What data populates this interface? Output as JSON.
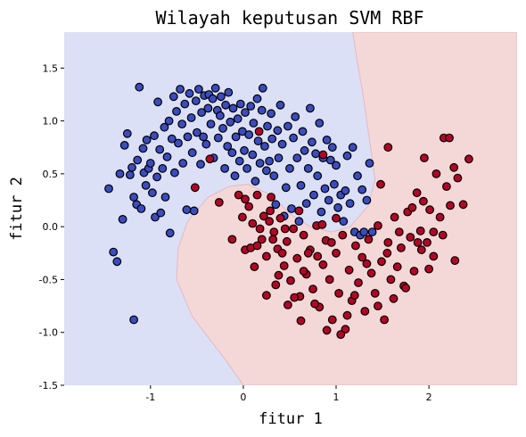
{
  "chart_data": {
    "type": "scatter",
    "title": "Wilayah keputusan SVM RBF",
    "xlabel": "fitur 1",
    "ylabel": "fitur 2",
    "xlim": [
      -1.93,
      2.95
    ],
    "ylim": [
      -1.5,
      1.84
    ],
    "xticks": [
      {
        "v": -1,
        "label": "-1"
      },
      {
        "v": 0,
        "label": "0"
      },
      {
        "v": 1,
        "label": "1"
      },
      {
        "v": 2,
        "label": "2"
      }
    ],
    "yticks": [
      {
        "v": -1.5,
        "label": "-1.5"
      },
      {
        "v": -1.0,
        "label": "-1.0"
      },
      {
        "v": -0.5,
        "label": "-0.5"
      },
      {
        "v": 0.0,
        "label": "0.0"
      },
      {
        "v": 0.5,
        "label": "0.5"
      },
      {
        "v": 1.0,
        "label": "1.0"
      },
      {
        "v": 1.5,
        "label": "1.5"
      }
    ],
    "grid": false,
    "regions": {
      "class0_color": "#dbe0f6",
      "class1_color": "#f4d8d7",
      "class1_boundary": [
        [
          0.0,
          -1.5
        ],
        [
          -0.2,
          -1.25
        ],
        [
          -0.55,
          -0.85
        ],
        [
          -0.72,
          -0.5
        ],
        [
          -0.7,
          -0.2
        ],
        [
          -0.6,
          0.05
        ],
        [
          -0.38,
          0.28
        ],
        [
          -0.15,
          0.38
        ],
        [
          0.05,
          0.4
        ],
        [
          0.3,
          0.3
        ],
        [
          0.5,
          0.12
        ],
        [
          0.72,
          0.0
        ],
        [
          0.95,
          -0.05
        ],
        [
          1.15,
          0.0
        ],
        [
          1.35,
          0.2
        ],
        [
          1.42,
          0.45
        ],
        [
          1.38,
          0.7
        ],
        [
          1.33,
          1.0
        ],
        [
          1.28,
          1.3
        ],
        [
          1.22,
          1.6
        ],
        [
          1.18,
          1.84
        ],
        [
          2.95,
          1.84
        ],
        [
          2.95,
          -1.5
        ]
      ]
    },
    "series": [
      {
        "color": "#3b4cc0",
        "points": [
          [
            -1.45,
            0.36
          ],
          [
            -1.36,
            -0.33
          ],
          [
            -1.4,
            -0.24
          ],
          [
            -1.33,
            0.5
          ],
          [
            -1.3,
            0.07
          ],
          [
            -1.28,
            0.77
          ],
          [
            -1.25,
            0.88
          ],
          [
            -1.22,
            0.49
          ],
          [
            -1.2,
            0.56
          ],
          [
            -1.18,
            0.28
          ],
          [
            -1.18,
            -0.88
          ],
          [
            -1.15,
            0.21
          ],
          [
            -1.14,
            0.63
          ],
          [
            -1.12,
            1.32
          ],
          [
            -1.1,
            0.17
          ],
          [
            -1.08,
            0.74
          ],
          [
            -1.07,
            0.51
          ],
          [
            -1.05,
            0.39
          ],
          [
            -1.04,
            0.82
          ],
          [
            -1.02,
            0.55
          ],
          [
            -1.0,
            0.6
          ],
          [
            -0.98,
            0.32
          ],
          [
            -0.96,
            0.86
          ],
          [
            -0.95,
            0.09
          ],
          [
            -0.93,
            0.47
          ],
          [
            -0.92,
            1.18
          ],
          [
            -0.9,
            0.73
          ],
          [
            -0.89,
            0.13
          ],
          [
            -0.87,
            0.55
          ],
          [
            -0.85,
            0.94
          ],
          [
            -0.84,
            0.28
          ],
          [
            -0.82,
            0.66
          ],
          [
            -0.8,
            1.0
          ],
          [
            -0.79,
            -0.06
          ],
          [
            -0.77,
            0.83
          ],
          [
            -0.75,
            1.23
          ],
          [
            -0.74,
            0.51
          ],
          [
            -0.72,
            1.09
          ],
          [
            -0.7,
            0.79
          ],
          [
            -0.68,
            1.3
          ],
          [
            -0.66,
            0.97
          ],
          [
            -0.65,
            0.6
          ],
          [
            -0.63,
            1.16
          ],
          [
            -0.61,
            0.16
          ],
          [
            -0.6,
            0.85
          ],
          [
            -0.58,
            1.26
          ],
          [
            -0.56,
            1.03
          ],
          [
            -0.55,
            0.7
          ],
          [
            -0.53,
            0.15
          ],
          [
            -0.51,
            1.19
          ],
          [
            -0.5,
            0.89
          ],
          [
            -0.48,
            1.3
          ],
          [
            -0.46,
            0.59
          ],
          [
            -0.45,
            1.08
          ],
          [
            -0.43,
            0.85
          ],
          [
            -0.42,
            1.24
          ],
          [
            -0.4,
            0.78
          ],
          [
            -0.38,
            1.12
          ],
          [
            -0.37,
            1.25
          ],
          [
            -0.35,
            0.97
          ],
          [
            -0.33,
            1.21
          ],
          [
            -0.32,
            0.65
          ],
          [
            -0.3,
            1.31
          ],
          [
            -0.28,
            1.1
          ],
          [
            -0.27,
            0.84
          ],
          [
            -0.25,
            1.05
          ],
          [
            -0.24,
            1.23
          ],
          [
            -0.22,
            0.93
          ],
          [
            -0.2,
            0.55
          ],
          [
            -0.19,
            1.15
          ],
          [
            -0.17,
            0.76
          ],
          [
            -0.16,
            1.27
          ],
          [
            -0.14,
            0.99
          ],
          [
            -0.12,
            0.7
          ],
          [
            -0.11,
            1.12
          ],
          [
            -0.09,
            0.48
          ],
          [
            -0.08,
            0.85
          ],
          [
            -0.06,
            1.02
          ],
          [
            -0.04,
            0.62
          ],
          [
            -0.03,
            1.16
          ],
          [
            -0.01,
            0.9
          ],
          [
            0.01,
            0.72
          ],
          [
            0.02,
            1.08
          ],
          [
            0.04,
            0.55
          ],
          [
            0.06,
            0.87
          ],
          [
            0.08,
            1.14
          ],
          [
            0.1,
            0.68
          ],
          [
            0.11,
            0.98
          ],
          [
            0.13,
            0.43
          ],
          [
            0.15,
            1.21
          ],
          [
            0.16,
            0.81
          ],
          [
            0.18,
            0.6
          ],
          [
            0.2,
            1.1
          ],
          [
            0.21,
            1.31
          ],
          [
            0.23,
            0.76
          ],
          [
            0.25,
            0.53
          ],
          [
            0.26,
            0.95
          ],
          [
            0.28,
            0.62
          ],
          [
            0.3,
            1.07
          ],
          [
            0.31,
            0.83
          ],
          [
            0.33,
            0.48
          ],
          [
            0.35,
            0.21
          ],
          [
            0.37,
            0.91
          ],
          [
            0.38,
            0.65
          ],
          [
            0.4,
            1.15
          ],
          [
            0.42,
            0.78
          ],
          [
            0.44,
            0.1
          ],
          [
            0.46,
            0.37
          ],
          [
            0.48,
            0.95
          ],
          [
            0.5,
            0.55
          ],
          [
            0.52,
            0.17
          ],
          [
            0.54,
            0.84
          ],
          [
            0.56,
            1.04
          ],
          [
            0.58,
            0.65
          ],
          [
            0.6,
            0.05
          ],
          [
            0.62,
            0.39
          ],
          [
            0.64,
            0.9
          ],
          [
            0.66,
            0.72
          ],
          [
            0.68,
            0.22
          ],
          [
            0.7,
            0.55
          ],
          [
            0.72,
            1.12
          ],
          [
            0.74,
            0.8
          ],
          [
            0.76,
            0.3
          ],
          [
            0.78,
            0.69
          ],
          [
            0.8,
            0.48
          ],
          [
            0.82,
            0.98
          ],
          [
            0.84,
            0.14
          ],
          [
            0.86,
            0.65
          ],
          [
            0.88,
            0.36
          ],
          [
            0.9,
            0.82
          ],
          [
            0.92,
            0.25
          ],
          [
            0.94,
            0.63
          ],
          [
            0.96,
            0.75
          ],
          [
            0.98,
            0.4
          ],
          [
            1.0,
            0.58
          ],
          [
            1.02,
            0.18
          ],
          [
            1.05,
            0.3
          ],
          [
            1.08,
            0.05
          ],
          [
            1.1,
            0.34
          ],
          [
            1.12,
            0.67
          ],
          [
            1.15,
            0.22
          ],
          [
            1.18,
            0.75
          ],
          [
            1.2,
            -0.05
          ],
          [
            1.23,
            0.48
          ],
          [
            1.26,
            -0.08
          ],
          [
            1.28,
            0.35
          ],
          [
            1.3,
            -0.05
          ],
          [
            1.33,
            0.25
          ],
          [
            1.36,
            0.6
          ],
          [
            1.39,
            -0.05
          ]
        ]
      },
      {
        "color": "#b40426",
        "points": [
          [
            0.17,
            0.9
          ],
          [
            -0.36,
            0.64
          ],
          [
            -0.52,
            0.37
          ],
          [
            0.86,
            0.68
          ],
          [
            -0.26,
            0.23
          ],
          [
            0.3,
            0.28
          ],
          [
            -0.05,
            0.3
          ],
          [
            0.18,
            -0.02
          ],
          [
            0.22,
            0.1
          ],
          [
            -0.01,
            0.09
          ],
          [
            0.02,
            0.26
          ],
          [
            0.06,
            0.19
          ],
          [
            0.1,
            0.03
          ],
          [
            0.15,
            0.3
          ],
          [
            0.2,
            -0.12
          ],
          [
            0.25,
            -0.28
          ],
          [
            0.29,
            0.15
          ],
          [
            0.33,
            -0.05
          ],
          [
            0.37,
            -0.21
          ],
          [
            0.4,
            0.08
          ],
          [
            0.44,
            -0.37
          ],
          [
            0.47,
            -0.14
          ],
          [
            0.51,
            -0.51
          ],
          [
            0.54,
            -0.02
          ],
          [
            0.58,
            -0.3
          ],
          [
            0.61,
            -0.66
          ],
          [
            0.65,
            -0.08
          ],
          [
            0.68,
            -0.45
          ],
          [
            0.72,
            -0.22
          ],
          [
            0.75,
            -0.59
          ],
          [
            0.79,
            0.01
          ],
          [
            0.82,
            -0.76
          ],
          [
            0.86,
            -0.36
          ],
          [
            0.89,
            -0.13
          ],
          [
            0.93,
            -0.5
          ],
          [
            0.96,
            -0.88
          ],
          [
            1.0,
            -0.25
          ],
          [
            1.03,
            -0.63
          ],
          [
            1.07,
            -0.08
          ],
          [
            1.1,
            -0.97
          ],
          [
            1.14,
            -0.41
          ],
          [
            1.17,
            -0.7
          ],
          [
            1.21,
            -0.18
          ],
          [
            1.24,
            -0.53
          ],
          [
            1.28,
            -0.29
          ],
          [
            1.31,
            -0.8
          ],
          [
            1.35,
            -0.12
          ],
          [
            1.38,
            -0.44
          ],
          [
            1.42,
            -0.63
          ],
          [
            1.45,
            0.01
          ],
          [
            1.49,
            -0.33
          ],
          [
            1.52,
            -0.88
          ],
          [
            1.56,
            -0.15
          ],
          [
            1.59,
            -0.5
          ],
          [
            1.63,
            0.09
          ],
          [
            1.66,
            -0.38
          ],
          [
            1.7,
            -0.2
          ],
          [
            1.73,
            -0.56
          ],
          [
            1.77,
            0.14
          ],
          [
            1.8,
            -0.1
          ],
          [
            1.84,
            -0.42
          ],
          [
            1.87,
            0.32
          ],
          [
            1.91,
            -0.04
          ],
          [
            1.94,
            0.24
          ],
          [
            1.98,
            -0.15
          ],
          [
            2.01,
            0.16
          ],
          [
            2.05,
            -0.05
          ],
          [
            2.08,
            0.5
          ],
          [
            2.12,
            0.09
          ],
          [
            2.16,
            0.84
          ],
          [
            2.19,
            0.38
          ],
          [
            2.23,
            0.2
          ],
          [
            2.27,
            0.56
          ],
          [
            2.31,
            0.46
          ],
          [
            2.37,
            0.21
          ],
          [
            2.43,
            0.64
          ],
          [
            1.56,
            0.75
          ],
          [
            2.22,
            0.84
          ],
          [
            1.95,
            0.65
          ],
          [
            0.35,
            -0.55
          ],
          [
            0.48,
            -0.74
          ],
          [
            0.62,
            -0.89
          ],
          [
            0.77,
            -0.73
          ],
          [
            0.9,
            -0.98
          ],
          [
            1.05,
            -1.02
          ],
          [
            1.12,
            -0.84
          ],
          [
            0.55,
            -0.67
          ],
          [
            0.25,
            -0.65
          ],
          [
            0.02,
            -0.22
          ],
          [
            -0.12,
            -0.12
          ],
          [
            0.12,
            -0.38
          ],
          [
            0.08,
            -0.2
          ],
          [
            0.38,
            -0.46
          ],
          [
            0.7,
            -0.25
          ],
          [
            0.95,
            -0.15
          ],
          [
            1.2,
            -0.65
          ],
          [
            1.45,
            -0.75
          ],
          [
            1.75,
            -0.58
          ],
          [
            2.0,
            -0.4
          ],
          [
            1.62,
            -0.68
          ],
          [
            0.28,
            0.05
          ],
          [
            0.45,
            -0.02
          ],
          [
            0.6,
            0.15
          ],
          [
            0.85,
            0.02
          ],
          [
            1.0,
            0.08
          ],
          [
            0.8,
            -0.28
          ],
          [
            0.65,
            -0.42
          ],
          [
            0.42,
            -0.25
          ],
          [
            0.32,
            -0.12
          ],
          [
            0.15,
            -0.18
          ],
          [
            1.33,
            -0.35
          ],
          [
            1.55,
            -0.25
          ],
          [
            1.68,
            -0.05
          ],
          [
            1.82,
            0.18
          ],
          [
            1.92,
            -0.22
          ],
          [
            2.15,
            -0.08
          ],
          [
            2.28,
            -0.32
          ],
          [
            2.05,
            -0.28
          ],
          [
            1.88,
            -0.15
          ],
          [
            1.48,
            0.4
          ]
        ]
      }
    ]
  }
}
